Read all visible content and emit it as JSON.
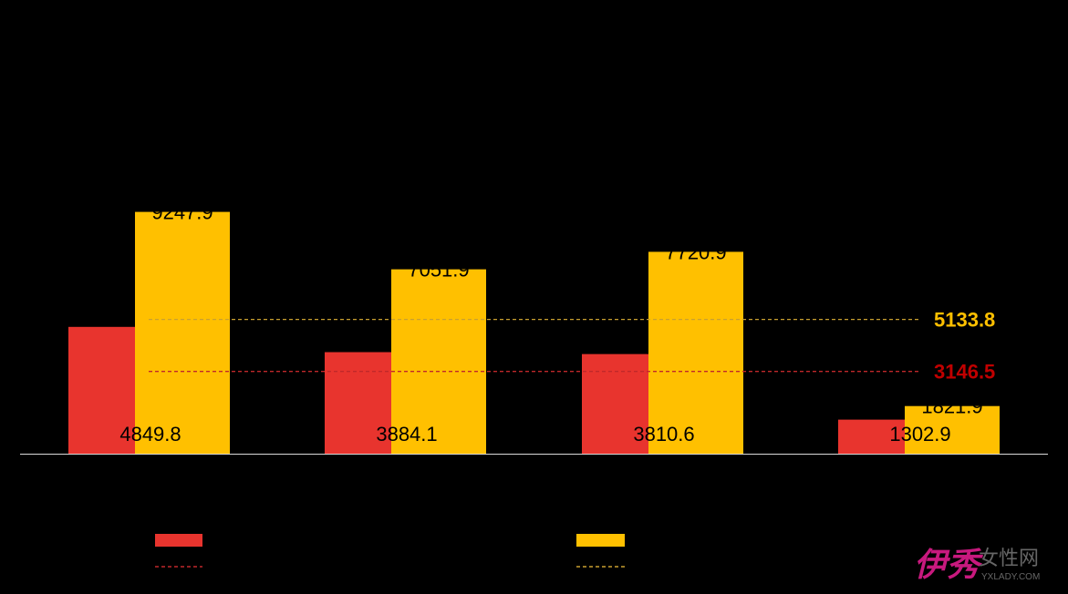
{
  "chart_data": {
    "type": "bar",
    "categories": [
      "",
      "",
      "",
      ""
    ],
    "series": [
      {
        "values": [
          4849.8,
          3884.1,
          3810.6,
          1302.9
        ],
        "color": "#E8342E"
      },
      {
        "values": [
          9247.9,
          7051.9,
          7720.9,
          1821.9
        ],
        "color": "#FFC000"
      }
    ],
    "reference_lines": [
      {
        "value": 5133.8,
        "label": "5133.8",
        "color": "#C9A030",
        "label_color": "#FFC000",
        "style": "dashed"
      },
      {
        "value": 3146.5,
        "label": "3146.5",
        "color": "#C0282A",
        "label_color": "#C00000",
        "style": "dashed"
      }
    ],
    "ylim": [
      0,
      10000
    ],
    "grid": false,
    "legend_position": "bottom",
    "legend_swatch_colors": [
      "#E8342E",
      "#FFC000"
    ],
    "legend_line_colors": [
      "#C0282A",
      "#C9A030"
    ]
  },
  "watermark": {
    "brand": "伊秀",
    "sub": "女性网",
    "url": "YXLADY.COM",
    "brand_color": "#C8197E",
    "sub_color": "#666666"
  }
}
